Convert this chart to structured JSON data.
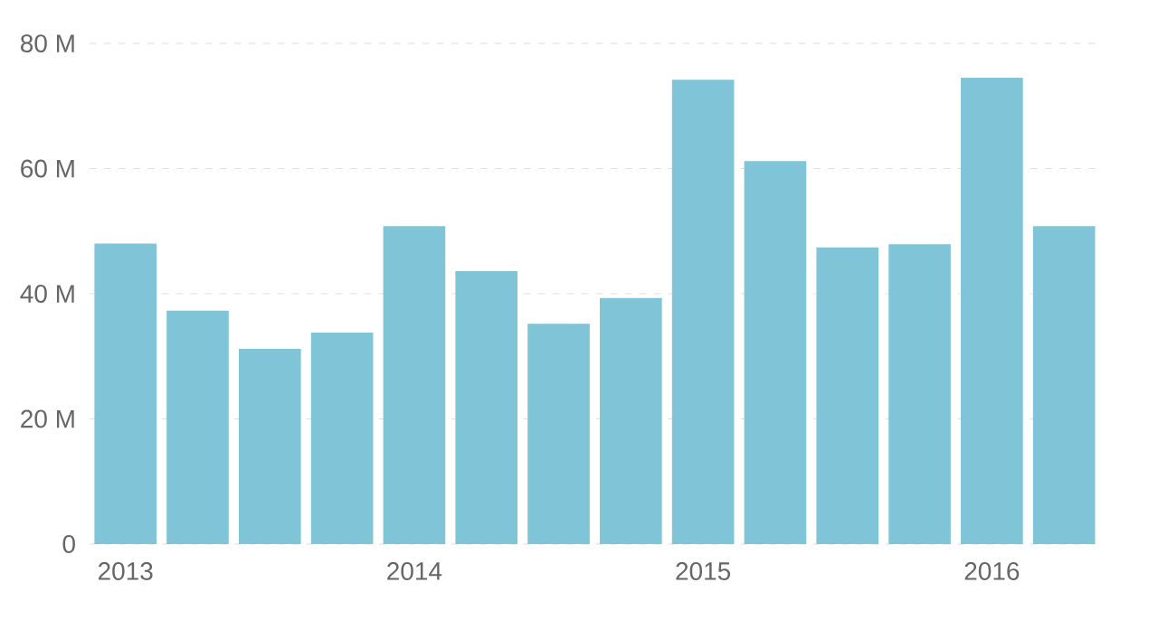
{
  "chart_data": {
    "type": "bar",
    "categories": [
      "2013",
      null,
      null,
      null,
      "2014",
      null,
      null,
      null,
      "2015",
      null,
      null,
      null,
      "2016",
      null
    ],
    "values": [
      48,
      37.3,
      31.2,
      33.8,
      50.8,
      43.6,
      35.2,
      39.3,
      74.2,
      61.2,
      47.4,
      47.9,
      74.5,
      50.8
    ],
    "color": "#80c4d8",
    "ylim": [
      0,
      80
    ],
    "yticks": [
      {
        "value": 0,
        "label": "0"
      },
      {
        "value": 20,
        "label": "20 M"
      },
      {
        "value": 40,
        "label": "40 M"
      },
      {
        "value": 60,
        "label": "60 M"
      },
      {
        "value": 80,
        "label": "80 M"
      }
    ],
    "grid": "y"
  }
}
